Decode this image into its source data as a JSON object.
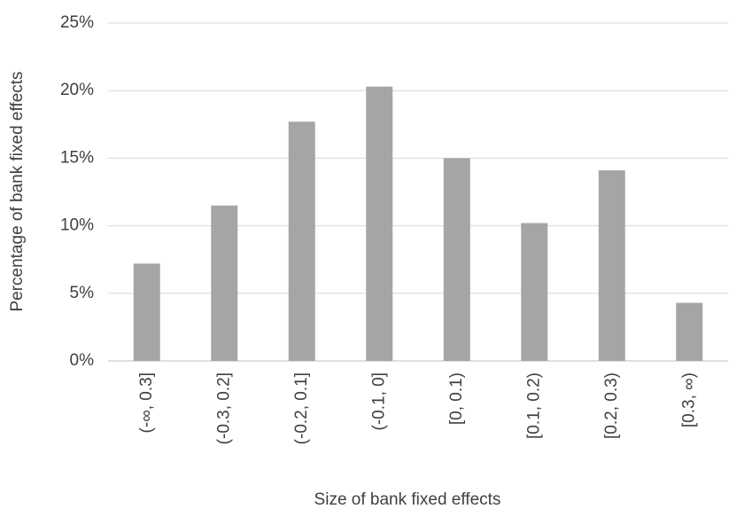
{
  "chart_data": {
    "type": "bar",
    "x_label": "Size of bank fixed effects",
    "y_label": "Percentage of bank fixed effects",
    "categories": [
      "(-∞, 0.3]",
      "(-0.3, 0.2]",
      "(-0.2, 0.1]",
      "(-0.1, 0]",
      "[0, 0.1)",
      "[0.1, 0.2)",
      "[0.2, 0.3)",
      "[0.3, ∞)"
    ],
    "values": [
      7.2,
      11.5,
      17.7,
      20.3,
      15.0,
      10.2,
      14.1,
      4.3
    ],
    "color": "#a5a5a5",
    "ylim": [
      0,
      25
    ],
    "yticks": [
      {
        "value": 0,
        "label": "0%"
      },
      {
        "value": 5,
        "label": "5%"
      },
      {
        "value": 10,
        "label": "10%"
      },
      {
        "value": 15,
        "label": "15%"
      },
      {
        "value": 20,
        "label": "20%"
      },
      {
        "value": 25,
        "label": "25%"
      }
    ],
    "grid": true
  }
}
